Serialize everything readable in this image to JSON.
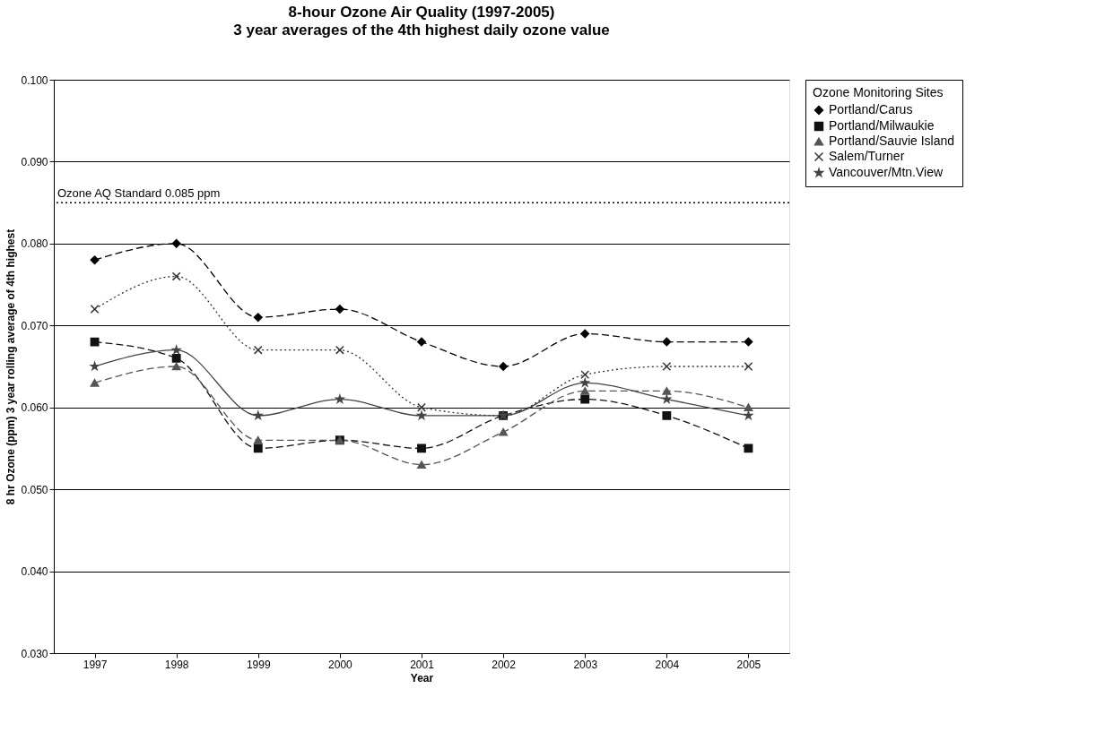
{
  "chart_data": {
    "type": "line",
    "title": "8-hour Ozone Air Quality (1997-2005)",
    "subtitle": "3 year averages of the 4th highest daily ozone value",
    "xlabel": "Year",
    "ylabel": "8 hr Ozone (ppm) 3 year rolling average of 4th highest",
    "legend_title": "Ozone Monitoring Sites",
    "categories": [
      "1997",
      "1998",
      "1999",
      "2000",
      "2001",
      "2002",
      "2003",
      "2004",
      "2005"
    ],
    "series": [
      {
        "name": "Portland/Carus",
        "color": "#000000",
        "marker": "diamond",
        "line_style": "dashed",
        "values": [
          0.078,
          0.08,
          0.071,
          0.072,
          0.068,
          0.065,
          0.069,
          0.068,
          0.068
        ]
      },
      {
        "name": "Portland/Milwaukie",
        "color": "#111111",
        "marker": "square",
        "line_style": "dashed",
        "values": [
          0.068,
          0.066,
          0.055,
          0.056,
          0.055,
          0.059,
          0.061,
          0.059,
          0.055
        ]
      },
      {
        "name": "Portland/Sauvie Island",
        "color": "#555555",
        "marker": "triangle",
        "line_style": "dashed",
        "values": [
          0.063,
          0.065,
          0.056,
          0.056,
          0.053,
          0.057,
          0.062,
          0.062,
          0.06
        ]
      },
      {
        "name": "Salem/Turner",
        "color": "#333333",
        "marker": "cross",
        "line_style": "dotted",
        "values": [
          0.072,
          0.076,
          0.067,
          0.067,
          0.06,
          0.059,
          0.064,
          0.065,
          0.065
        ]
      },
      {
        "name": "Vancouver/Mtn.View",
        "color": "#444444",
        "marker": "star",
        "line_style": "solid",
        "values": [
          0.065,
          0.067,
          0.059,
          0.061,
          0.059,
          0.059,
          0.063,
          0.061,
          0.059
        ]
      }
    ],
    "ylim": [
      0.03,
      0.1
    ],
    "yticks": [
      {
        "value": 0.03,
        "label": "0.030"
      },
      {
        "value": 0.04,
        "label": "0.040"
      },
      {
        "value": 0.05,
        "label": "0.050"
      },
      {
        "value": 0.06,
        "label": "0.060"
      },
      {
        "value": 0.07,
        "label": "0.070"
      },
      {
        "value": 0.08,
        "label": "0.080"
      },
      {
        "value": 0.09,
        "label": "0.090"
      },
      {
        "value": 0.1,
        "label": "0.100"
      }
    ],
    "ref_lines": [
      {
        "axis": "y",
        "value": 0.085,
        "label": "Ozone AQ Standard 0.085 ppm",
        "line_style": "dotted",
        "color": "#000000"
      }
    ],
    "grid": "y",
    "legend": "right"
  }
}
